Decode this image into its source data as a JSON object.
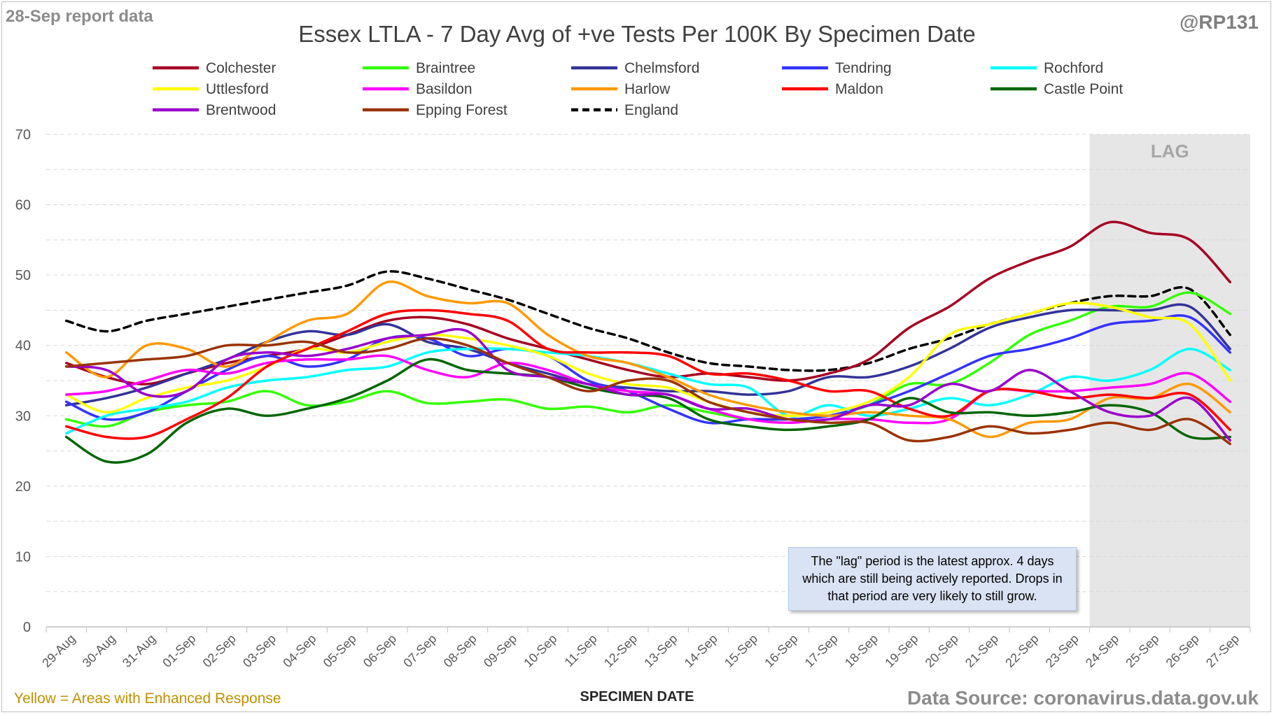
{
  "header": {
    "report_label": "28-Sep report data",
    "credit": "@RP131"
  },
  "footer": {
    "enhanced_note": "Yellow = Areas with Enhanced Response",
    "source": "Data Source: coronavirus.data.gov.uk"
  },
  "note": {
    "text": "The \"lag\" period is the latest approx. 4 days which are still being actively reported.  Drops in that period are very likely to still grow."
  },
  "chart_data": {
    "type": "line",
    "title": "Essex LTLA - 7 Day Avg of +ve Tests Per 100K By Specimen Date",
    "xlabel": "SPECIMEN DATE",
    "ylabel": "",
    "ylim": [
      0,
      70
    ],
    "yticks": [
      0,
      10,
      20,
      30,
      40,
      50,
      60,
      70
    ],
    "grid": "horizontal dashed",
    "legend_position": "top",
    "lag_label": "LAG",
    "lag_start_index": 26,
    "lag_color": "#e7e6e6",
    "categories": [
      "29-Aug",
      "30-Aug",
      "31-Aug",
      "01-Sep",
      "02-Sep",
      "03-Sep",
      "04-Sep",
      "05-Sep",
      "06-Sep",
      "07-Sep",
      "08-Sep",
      "09-Sep",
      "10-Sep",
      "11-Sep",
      "12-Sep",
      "13-Sep",
      "14-Sep",
      "15-Sep",
      "16-Sep",
      "17-Sep",
      "18-Sep",
      "19-Sep",
      "20-Sep",
      "21-Sep",
      "22-Sep",
      "23-Sep",
      "24-Sep",
      "25-Sep",
      "26-Sep",
      "27-Sep"
    ],
    "series": [
      {
        "name": "Colchester",
        "color": "#a50021",
        "dash": false,
        "values": [
          37.5,
          35.5,
          34.5,
          36.0,
          37.5,
          38.5,
          39.5,
          41.5,
          43.5,
          44.0,
          43.0,
          41.0,
          39.5,
          38.0,
          36.5,
          35.5,
          36.0,
          35.5,
          35.0,
          36.0,
          38.0,
          42.5,
          45.5,
          49.5,
          52.0,
          54.0,
          57.5,
          56.0,
          55.0,
          49.0
        ]
      },
      {
        "name": "Braintree",
        "color": "#33ff00",
        "dash": false,
        "values": [
          29.5,
          28.5,
          30.5,
          31.5,
          32.0,
          33.5,
          31.5,
          32.0,
          33.5,
          31.8,
          32.0,
          32.3,
          31.0,
          31.3,
          30.5,
          31.5,
          30.5,
          29.5,
          29.5,
          30.0,
          31.5,
          34.5,
          34.5,
          37.5,
          41.5,
          43.5,
          45.5,
          45.5,
          47.5,
          44.5
        ]
      },
      {
        "name": "Chelmsford",
        "color": "#333399",
        "dash": false,
        "values": [
          31.5,
          32.5,
          34.0,
          36.0,
          38.0,
          40.5,
          42.0,
          41.5,
          43.0,
          40.5,
          39.5,
          37.5,
          36.0,
          34.5,
          34.0,
          33.5,
          33.5,
          33.0,
          33.5,
          35.5,
          35.5,
          37.0,
          39.5,
          42.5,
          44.0,
          45.0,
          45.0,
          45.0,
          45.5,
          39.5
        ]
      },
      {
        "name": "Tendring",
        "color": "#3333ff",
        "dash": false,
        "values": [
          32.0,
          29.5,
          30.5,
          33.5,
          36.5,
          38.5,
          37.0,
          38.0,
          41.0,
          41.0,
          38.5,
          39.5,
          38.5,
          35.0,
          33.5,
          31.0,
          29.0,
          29.5,
          29.5,
          30.0,
          31.5,
          33.5,
          36.0,
          38.5,
          39.5,
          41.0,
          43.0,
          43.5,
          44.0,
          39.0
        ]
      },
      {
        "name": "Rochford",
        "color": "#00ffff",
        "dash": false,
        "values": [
          27.5,
          30.0,
          31.0,
          32.0,
          34.0,
          35.0,
          35.5,
          36.5,
          37.0,
          39.0,
          39.5,
          39.5,
          39.0,
          38.5,
          37.5,
          36.0,
          34.5,
          34.0,
          30.0,
          31.5,
          30.0,
          31.0,
          32.5,
          31.5,
          33.0,
          35.5,
          35.0,
          36.5,
          39.5,
          36.5
        ]
      },
      {
        "name": "Uttlesford",
        "color": "#ffff00",
        "dash": false,
        "values": [
          33.0,
          30.5,
          32.5,
          34.0,
          35.0,
          37.0,
          39.5,
          39.0,
          40.5,
          41.5,
          41.0,
          40.0,
          38.5,
          36.0,
          34.5,
          34.0,
          32.0,
          30.5,
          30.0,
          30.5,
          32.0,
          35.5,
          41.5,
          43.0,
          44.5,
          46.0,
          45.5,
          44.0,
          43.0,
          35.0
        ]
      },
      {
        "name": "Basildon",
        "color": "#ff00ff",
        "dash": false,
        "values": [
          33.0,
          33.5,
          35.0,
          36.5,
          36.0,
          37.5,
          38.0,
          38.0,
          38.5,
          36.5,
          35.5,
          37.5,
          36.5,
          34.5,
          33.5,
          33.0,
          31.0,
          29.5,
          29.0,
          29.5,
          29.5,
          29.0,
          29.5,
          33.5,
          33.5,
          33.5,
          34.0,
          34.5,
          36.0,
          32.0
        ]
      },
      {
        "name": "Harlow",
        "color": "#ff9900",
        "dash": false,
        "values": [
          39.0,
          35.5,
          40.0,
          39.5,
          37.0,
          40.5,
          43.5,
          44.5,
          49.0,
          47.0,
          46.0,
          46.0,
          41.5,
          38.5,
          37.5,
          35.5,
          33.0,
          31.5,
          30.5,
          30.0,
          30.5,
          30.0,
          29.5,
          27.0,
          29.0,
          29.5,
          32.5,
          32.5,
          34.5,
          30.5
        ]
      },
      {
        "name": "Maldon",
        "color": "#ff0000",
        "dash": false,
        "values": [
          28.5,
          27.0,
          27.0,
          29.5,
          32.5,
          37.0,
          39.5,
          42.0,
          44.5,
          45.0,
          44.5,
          43.5,
          39.5,
          39.0,
          39.0,
          38.5,
          36.0,
          36.0,
          35.0,
          33.5,
          33.5,
          31.0,
          30.0,
          33.5,
          33.5,
          32.5,
          33.0,
          32.5,
          33.0,
          28.0
        ]
      },
      {
        "name": "Castle Point",
        "color": "#006600",
        "dash": false,
        "values": [
          27.0,
          23.5,
          24.5,
          29.0,
          31.0,
          30.0,
          31.0,
          32.5,
          35.0,
          38.0,
          36.5,
          36.0,
          35.5,
          34.0,
          33.0,
          32.5,
          29.5,
          28.5,
          28.0,
          28.5,
          29.5,
          32.5,
          30.5,
          30.5,
          30.0,
          30.5,
          31.5,
          30.5,
          27.0,
          27.0
        ]
      },
      {
        "name": "Brentwood",
        "color": "#9900cc",
        "dash": false,
        "values": [
          37.0,
          36.5,
          33.0,
          33.5,
          38.0,
          39.0,
          38.5,
          39.5,
          41.0,
          41.5,
          42.0,
          36.5,
          35.5,
          34.5,
          33.0,
          33.0,
          31.0,
          31.0,
          29.5,
          29.5,
          31.5,
          31.5,
          34.5,
          33.5,
          36.5,
          33.5,
          30.5,
          30.0,
          32.5,
          26.5
        ]
      },
      {
        "name": "Epping Forest",
        "color": "#993300",
        "dash": false,
        "values": [
          37.0,
          37.5,
          38.0,
          38.5,
          40.0,
          40.0,
          40.5,
          39.0,
          39.5,
          41.0,
          40.0,
          37.5,
          35.5,
          33.5,
          35.0,
          35.0,
          32.0,
          30.5,
          29.5,
          29.0,
          29.0,
          26.5,
          27.0,
          28.5,
          27.5,
          28.0,
          29.0,
          28.0,
          29.5,
          26.0
        ]
      },
      {
        "name": "England",
        "color": "#000000",
        "dash": true,
        "values": [
          43.5,
          42.0,
          43.5,
          44.5,
          45.5,
          46.5,
          47.5,
          48.5,
          50.5,
          49.5,
          48.0,
          46.5,
          44.5,
          42.5,
          41.0,
          39.0,
          37.5,
          37.0,
          36.5,
          36.5,
          37.5,
          39.5,
          41.0,
          43.0,
          44.5,
          46.0,
          47.0,
          47.0,
          48.0,
          41.5
        ]
      }
    ]
  }
}
